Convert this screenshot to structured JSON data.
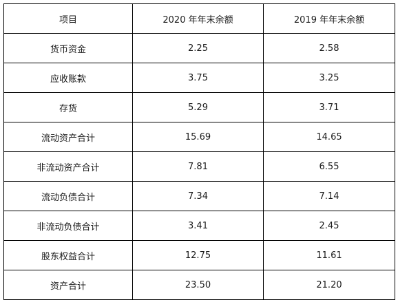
{
  "table": {
    "headers": [
      "项目",
      "2020 年年末余额",
      "2019 年年末余额"
    ],
    "rows": [
      {
        "item": "货币资金",
        "y2020": "2.25",
        "y2019": "2.58"
      },
      {
        "item": "应收账款",
        "y2020": "3.75",
        "y2019": "3.25"
      },
      {
        "item": "存货",
        "y2020": "5.29",
        "y2019": "3.71"
      },
      {
        "item": "流动资产合计",
        "y2020": "15.69",
        "y2019": "14.65"
      },
      {
        "item": "非流动资产合计",
        "y2020": "7.81",
        "y2019": "6.55"
      },
      {
        "item": "流动负债合计",
        "y2020": "7.34",
        "y2019": "7.14"
      },
      {
        "item": "非流动负债合计",
        "y2020": "3.41",
        "y2019": "2.45"
      },
      {
        "item": "股东权益合计",
        "y2020": "12.75",
        "y2019": "11.61"
      },
      {
        "item": "资产合计",
        "y2020": "23.50",
        "y2019": "21.20"
      }
    ]
  }
}
